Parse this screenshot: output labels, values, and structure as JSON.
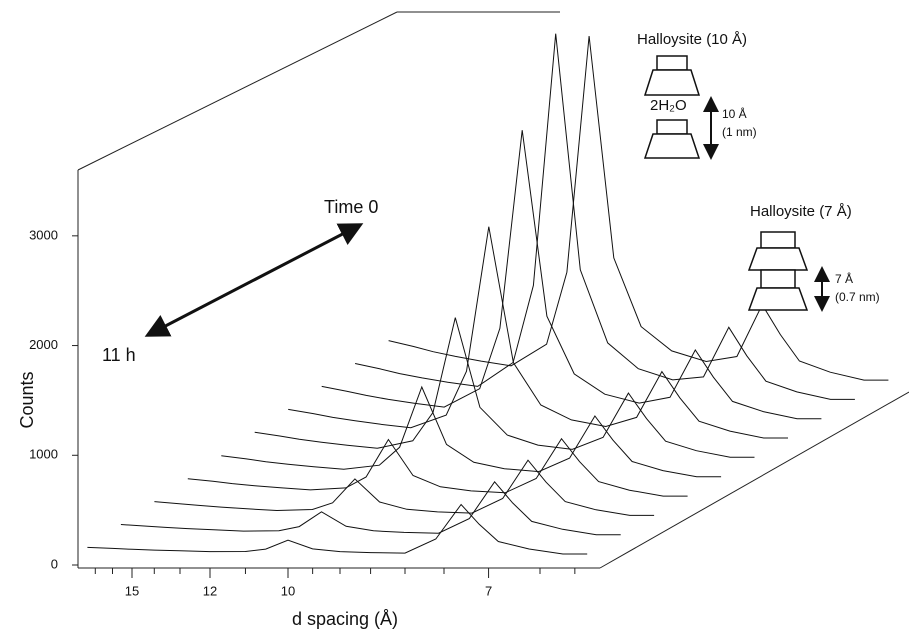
{
  "chart_data": {
    "type": "waterfall",
    "xlabel": "d spacing (Å)",
    "ylabel": "Counts",
    "x": [
      17.5,
      16,
      15,
      14,
      13,
      12,
      11,
      10.5,
      10,
      9.5,
      9,
      8.5,
      8,
      7.6,
      7.3,
      7.1,
      6.9,
      6.6,
      6.3,
      6.1
    ],
    "xlim": [
      18,
      6
    ],
    "xscale": "reciprocal",
    "xticks": [
      15,
      12,
      10,
      7
    ],
    "xminorticks": [
      17,
      16,
      14,
      13,
      11,
      9.5,
      9,
      8.5,
      8,
      7.5,
      6.5,
      6.2
    ],
    "ylim": [
      0,
      3600
    ],
    "yticks": [
      0,
      1000,
      2000,
      3000
    ],
    "color": "#111111",
    "series": [
      {
        "values": [
          160,
          151,
          143,
          136,
          129,
          122,
          123,
          145,
          226,
          147,
          122,
          113,
          108,
          237,
          551,
          371,
          214,
          146,
          100,
          100
        ]
      },
      {
        "values": [
          215,
          201,
          189,
          178,
          167,
          155,
          158,
          196,
          331,
          199,
          158,
          143,
          136,
          269,
          604,
          412,
          243,
          171,
          122,
          122
        ]
      },
      {
        "values": [
          270,
          251,
          235,
          220,
          204,
          189,
          198,
          259,
          477,
          266,
          200,
          176,
          165,
          298,
          647,
          447,
          270,
          195,
          144,
          144
        ]
      },
      {
        "values": [
          325,
          301,
          280,
          261,
          242,
          223,
          241,
          340,
          682,
          354,
          251,
          214,
          197,
          327,
          689,
          481,
          298,
          220,
          166,
          166
        ]
      },
      {
        "values": [
          380,
          351,
          326,
          303,
          280,
          257,
          294,
          457,
          1007,
          483,
          320,
          262,
          236,
          359,
          742,
          522,
          328,
          245,
          188,
          188
        ]
      },
      {
        "values": [
          440,
          406,
          376,
          349,
          321,
          294,
          362,
          621,
          1485,
          668,
          414,
          323,
          284,
          393,
          797,
          565,
          359,
          272,
          212,
          212
        ]
      },
      {
        "values": [
          495,
          456,
          422,
          391,
          359,
          328,
          443,
          843,
          2160,
          920,
          535,
          399,
          339,
          422,
          839,
          599,
          387,
          297,
          234,
          234
        ]
      },
      {
        "values": [
          550,
          506,
          468,
          432,
          397,
          362,
          529,
          1080,
          2885,
          1190,
          664,
          479,
          398,
          451,
          882,
          634,
          414,
          321,
          256,
          256
        ]
      },
      {
        "values": [
          605,
          556,
          513,
          474,
          435,
          396,
          614,
          1317,
          3611,
          1459,
          793,
          558,
          456,
          483,
          935,
          675,
          444,
          346,
          278,
          278
        ]
      },
      {
        "values": [
          660,
          606,
          559,
          516,
          473,
          430,
          627,
          1284,
          3436,
          1414,
          787,
          566,
          469,
          515,
          987,
          715,
          474,
          372,
          300,
          300
        ]
      }
    ],
    "annotations": [
      "Time 0",
      "11 h"
    ],
    "insets": [
      {
        "title": "Halloysite (10 Å)",
        "interlayer": "2H₂O",
        "spacing": "10 Å",
        "spacing_nm": "(1 nm)"
      },
      {
        "title": "Halloysite (7 Å)",
        "spacing": "7 Å",
        "spacing_nm": "(0.7 nm)"
      }
    ]
  }
}
